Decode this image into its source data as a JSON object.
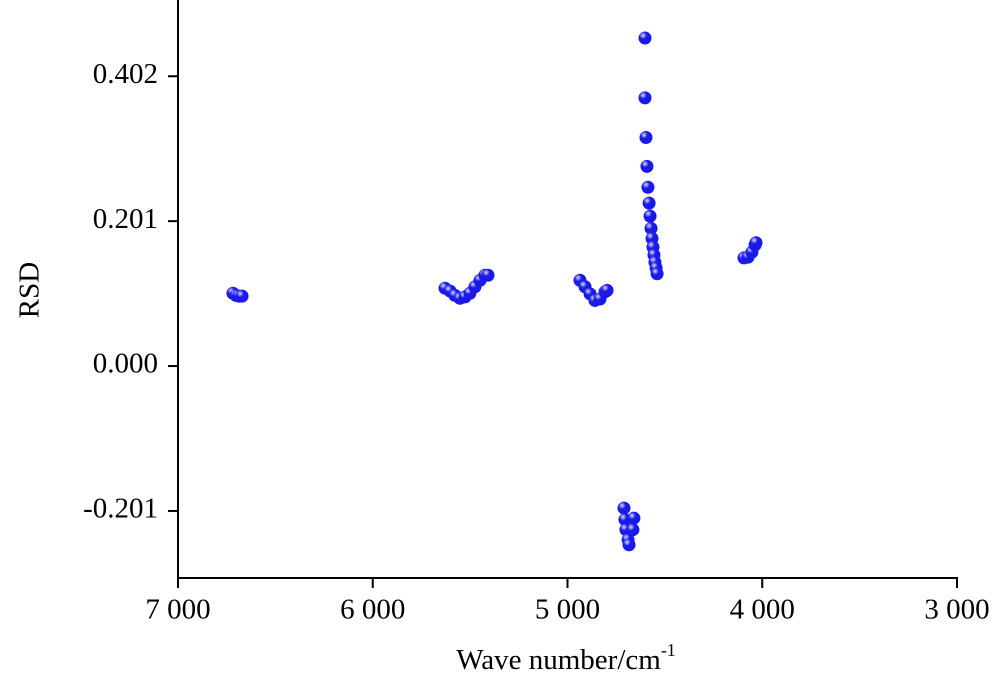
{
  "chart_data": {
    "type": "scatter",
    "x_label": "Wave number/cm",
    "x_label_superscript": "-1",
    "y_label": "RSD",
    "xlim": [
      7000,
      3000
    ],
    "ylim": [
      -0.294,
      0.505
    ],
    "xticks": [
      {
        "value": 7000,
        "label": "7 000"
      },
      {
        "value": 6000,
        "label": "6 000"
      },
      {
        "value": 5000,
        "label": "5 000"
      },
      {
        "value": 4000,
        "label": "4 000"
      },
      {
        "value": 3000,
        "label": "3 000"
      }
    ],
    "yticks": [
      -0.201,
      {
        "value": 0,
        "label": "0.000"
      },
      0.201,
      0.402
    ],
    "color": "#1a1ae6",
    "x": [
      6718,
      6702,
      6687,
      6671,
      5629,
      5603,
      5578,
      5552,
      5526,
      5501,
      5475,
      5449,
      5424,
      5408,
      4936,
      4910,
      4884,
      4859,
      4833,
      4807,
      4797,
      4602,
      4602,
      4597,
      4592,
      4587,
      4581,
      4576,
      4571,
      4566,
      4561,
      4556,
      4551,
      4545,
      4540,
      4094,
      4073,
      4053,
      4037,
      4032,
      4710,
      4705,
      4700,
      4689,
      4684,
      4659,
      4664
    ],
    "values": [
      0.101,
      0.098,
      0.097,
      0.097,
      0.108,
      0.104,
      0.098,
      0.094,
      0.096,
      0.101,
      0.11,
      0.119,
      0.126,
      0.126,
      0.119,
      0.11,
      0.1,
      0.091,
      0.093,
      0.103,
      0.105,
      0.455,
      0.372,
      0.317,
      0.277,
      0.248,
      0.226,
      0.208,
      0.191,
      0.177,
      0.165,
      0.154,
      0.144,
      0.136,
      0.128,
      0.15,
      0.151,
      0.158,
      0.168,
      0.171,
      -0.197,
      -0.213,
      -0.227,
      -0.241,
      -0.248,
      -0.211,
      -0.227
    ]
  }
}
